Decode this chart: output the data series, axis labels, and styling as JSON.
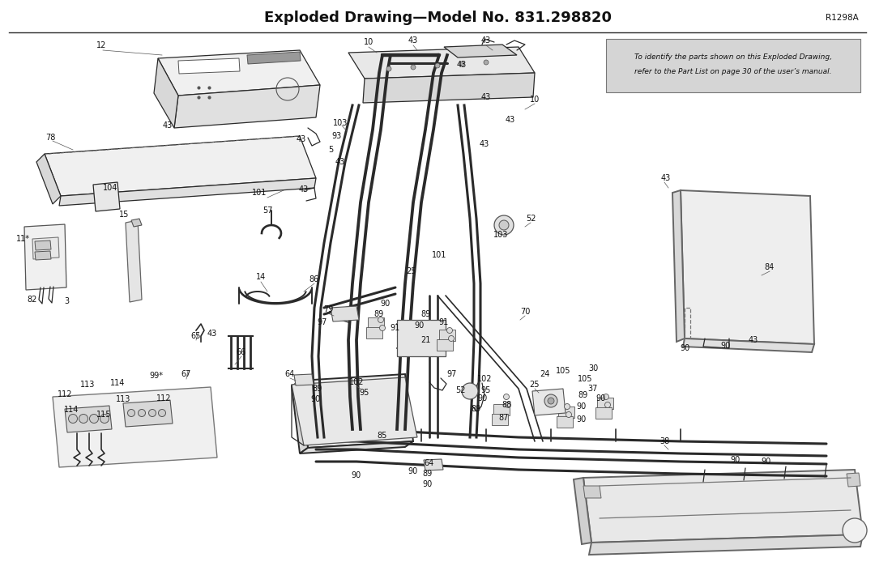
{
  "title": "Exploded Drawing—Model No. 831.298820",
  "ref_code": "R1298A",
  "note_line1": "To identify the parts shown on this ",
  "note_italic1": "Exploded Drawing,",
  "note_line2": "refer to the ",
  "note_italic2": "Part List",
  "note_line2b": " on page 30 of the user’s manual.",
  "bg_color": "#ffffff",
  "lc": "#2a2a2a",
  "lc_thin": "#3a3a3a"
}
